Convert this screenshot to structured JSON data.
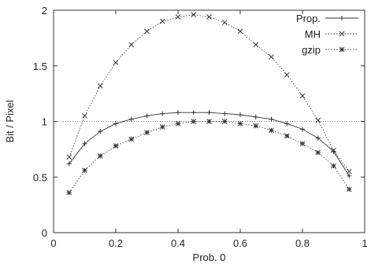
{
  "chart_data": {
    "type": "line",
    "title": "",
    "xlabel": "Prob. 0",
    "ylabel": "Bit / Pixel",
    "xlim": [
      0,
      1
    ],
    "ylim": [
      0,
      2
    ],
    "xticks": [
      0,
      0.2,
      0.4,
      0.6,
      0.8,
      1
    ],
    "yticks": [
      0,
      0.5,
      1,
      1.5,
      2
    ],
    "xtick_labels": [
      "0",
      "0.2",
      "0.4",
      "0.6",
      "0.8",
      "1"
    ],
    "ytick_labels": [
      "0",
      "0.5",
      "1",
      "1.5",
      "2"
    ],
    "grid": false,
    "legend_position": "top-right",
    "reference_lines": [
      {
        "axis": "y",
        "value": 1,
        "style": "dotted"
      }
    ],
    "series": [
      {
        "name": "Prop.",
        "marker": "plus",
        "line": "solid",
        "x": [
          0.05,
          0.1,
          0.15,
          0.2,
          0.25,
          0.3,
          0.35,
          0.4,
          0.45,
          0.5,
          0.55,
          0.6,
          0.65,
          0.7,
          0.75,
          0.8,
          0.85,
          0.9,
          0.95
        ],
        "y": [
          0.62,
          0.8,
          0.91,
          0.98,
          1.02,
          1.05,
          1.07,
          1.08,
          1.08,
          1.08,
          1.07,
          1.06,
          1.04,
          1.02,
          0.98,
          0.93,
          0.85,
          0.73,
          0.51
        ]
      },
      {
        "name": "MH",
        "marker": "cross",
        "line": "dotted",
        "x": [
          0.05,
          0.1,
          0.15,
          0.2,
          0.25,
          0.3,
          0.35,
          0.4,
          0.45,
          0.5,
          0.55,
          0.6,
          0.65,
          0.7,
          0.75,
          0.8,
          0.85,
          0.9,
          0.95
        ],
        "y": [
          0.68,
          1.05,
          1.32,
          1.53,
          1.69,
          1.81,
          1.9,
          1.94,
          1.96,
          1.94,
          1.89,
          1.81,
          1.69,
          1.58,
          1.42,
          1.23,
          1.01,
          0.74,
          0.55
        ]
      },
      {
        "name": "gzip",
        "marker": "star",
        "line": "dotted",
        "x": [
          0.05,
          0.1,
          0.15,
          0.2,
          0.25,
          0.3,
          0.35,
          0.4,
          0.45,
          0.5,
          0.55,
          0.6,
          0.65,
          0.7,
          0.75,
          0.8,
          0.85,
          0.9,
          0.95
        ],
        "y": [
          0.36,
          0.56,
          0.69,
          0.78,
          0.84,
          0.9,
          0.95,
          0.98,
          1.0,
          1.0,
          1.0,
          0.98,
          0.96,
          0.92,
          0.87,
          0.8,
          0.72,
          0.6,
          0.39
        ]
      }
    ]
  }
}
